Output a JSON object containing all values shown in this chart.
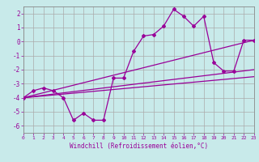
{
  "xlabel": "Windchill (Refroidissement éolien,°C)",
  "background_color": "#c8eaea",
  "grid_color": "#aaaaaa",
  "line_color": "#990099",
  "xlim": [
    0,
    23
  ],
  "ylim": [
    -6.5,
    2.5
  ],
  "xticks": [
    0,
    1,
    2,
    3,
    4,
    5,
    6,
    7,
    8,
    9,
    10,
    11,
    12,
    13,
    14,
    15,
    16,
    17,
    18,
    19,
    20,
    21,
    22,
    23
  ],
  "yticks": [
    -6,
    -5,
    -4,
    -3,
    -2,
    -1,
    0,
    1,
    2
  ],
  "zigzag_x": [
    0,
    1,
    2,
    3,
    4,
    5,
    6,
    7,
    8,
    9,
    10,
    11,
    12,
    13,
    14,
    15,
    16,
    17,
    18,
    19,
    20,
    21,
    22,
    23
  ],
  "zigzag_y": [
    -4.0,
    -3.5,
    -3.3,
    -3.5,
    -4.0,
    -5.6,
    -5.1,
    -5.6,
    -5.6,
    -2.6,
    -2.6,
    -0.7,
    0.4,
    0.5,
    1.1,
    2.3,
    1.8,
    1.1,
    1.8,
    -1.5,
    -2.1,
    -2.1,
    0.1,
    0.1
  ],
  "line1_x": [
    0,
    23
  ],
  "line1_y": [
    -4.0,
    0.1
  ],
  "line2_x": [
    0,
    23
  ],
  "line2_y": [
    -4.0,
    -2.0
  ],
  "line3_x": [
    0,
    23
  ],
  "line3_y": [
    -4.0,
    -2.5
  ]
}
